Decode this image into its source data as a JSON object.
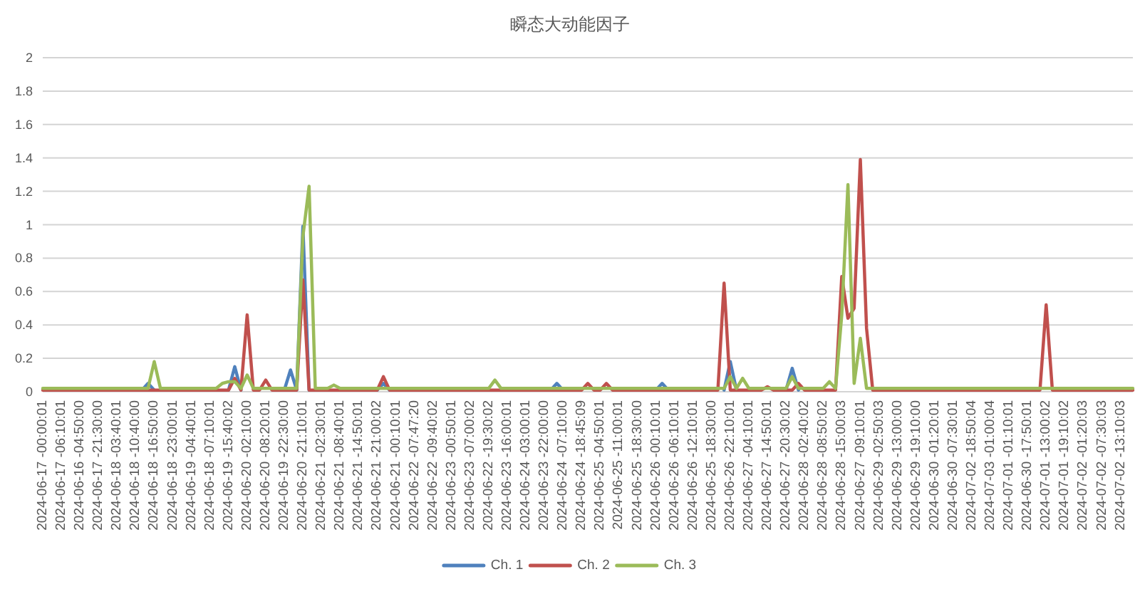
{
  "chart_data": {
    "type": "line",
    "title": "瞬态大动能因子",
    "categories": [
      "2024-06-17 -00:00:01",
      null,
      null,
      "2024-06-17 -06:10:01",
      null,
      null,
      "2024-06-16 -04:50:00",
      null,
      null,
      "2024-06-17 -21:30:00",
      null,
      null,
      "2024-06-18 -03:40:01",
      null,
      null,
      "2024-06-18 -10:40:00",
      null,
      null,
      "2024-06-18 -16:50:00",
      null,
      null,
      "2024-06-18 -23:00:01",
      null,
      null,
      "2024-06-19 -04:40:01",
      null,
      null,
      "2024-06-18 -07:10:01",
      null,
      null,
      "2024-06-19 -15:40:02",
      null,
      null,
      "2024-06-20 -02:10:00",
      null,
      null,
      "2024-06-20 -08:20:01",
      null,
      null,
      "2024-06-19 -22:30:00",
      null,
      null,
      "2024-06-20 -21:10:01",
      null,
      null,
      "2024-06-21 -02:30:01",
      null,
      null,
      "2024-06-21 -08:40:01",
      null,
      null,
      "2024-06-21 -14:50:01",
      null,
      null,
      "2024-06-21 -21:00:02",
      null,
      null,
      "2024-06-21 -00:10:01",
      null,
      null,
      "2024-06-22 -07:47:20",
      null,
      null,
      "2024-06-22 -09:40:02",
      null,
      null,
      "2024-06-23 -00:50:01",
      null,
      null,
      "2024-06-23 -07:00:02",
      null,
      null,
      "2024-06-22 -19:30:02",
      null,
      null,
      "2024-06-23 -16:00:01",
      null,
      null,
      "2024-06-24 -03:00:01",
      null,
      null,
      "2024-06-23 -22:00:00",
      null,
      null,
      "2024-06-24 -07:10:00",
      null,
      null,
      "2024-06-24 -18:45:09",
      null,
      null,
      "2024-06-25 -04:50:01",
      null,
      null,
      "2024-06-25 -11:00:01",
      null,
      null,
      "2024-06-25 -18:30:00",
      null,
      null,
      "2024-06-26 -00:10:01",
      null,
      null,
      "2024-06-26 -06:10:01",
      null,
      null,
      "2024-06-26 -12:10:01",
      null,
      null,
      "2024-06-25 -18:30:00",
      null,
      null,
      "2024-06-26 -22:10:01",
      null,
      null,
      "2024-06-27 -04:10:01",
      null,
      null,
      "2024-06-27 -14:50:01",
      null,
      null,
      "2024-06-27 -20:30:02",
      null,
      null,
      "2024-06-28 -02:40:02",
      null,
      null,
      "2024-06-28 -08:50:02",
      null,
      null,
      "2024-06-28 -15:00:03",
      null,
      null,
      "2024-06-27 -09:10:01",
      null,
      null,
      "2024-06-29 -02:50:03",
      null,
      null,
      "2024-06-29 -13:00:00",
      null,
      null,
      "2024-06-29 -19:10:00",
      null,
      null,
      "2024-06-30 -01:20:01",
      null,
      null,
      "2024-06-30 -07:30:01",
      null,
      null,
      "2024-07-02 -18:50:04",
      null,
      null,
      "2024-07-03 -01:00:04",
      null,
      null,
      "2024-07-01 -01:10:01",
      null,
      null,
      "2024-06-30 -17:50:01",
      null,
      null,
      "2024-07-01 -13:00:02",
      null,
      null,
      "2024-07-01 -19:10:02",
      null,
      null,
      "2024-07-02 -01:20:03",
      null,
      null,
      "2024-07-02 -07:30:03",
      null,
      null,
      "2024-07-02 -13:10:03",
      null,
      null
    ],
    "series": [
      {
        "name": "Ch. 1",
        "color": "#4f81bd",
        "values": [
          null,
          null,
          null,
          null,
          null,
          null,
          null,
          null,
          null,
          null,
          null,
          null,
          null,
          null,
          null,
          null,
          0.01,
          0.05,
          0.01,
          null,
          null,
          null,
          null,
          null,
          null,
          null,
          null,
          null,
          null,
          null,
          0.01,
          0.15,
          0.01,
          null,
          null,
          null,
          null,
          null,
          null,
          0.01,
          0.13,
          0.01,
          0.99,
          0.01,
          null,
          null,
          null,
          null,
          null,
          null,
          null,
          null,
          null,
          null,
          0.01,
          0.05,
          0.01,
          null,
          null,
          null,
          null,
          null,
          null,
          null,
          null,
          null,
          null,
          null,
          null,
          null,
          null,
          null,
          null,
          null,
          null,
          null,
          null,
          null,
          null,
          null,
          null,
          null,
          0.01,
          0.05,
          0.01,
          null,
          null,
          null,
          null,
          null,
          null,
          null,
          null,
          null,
          null,
          null,
          null,
          null,
          null,
          0.01,
          0.05,
          0.01,
          null,
          null,
          null,
          null,
          null,
          null,
          null,
          null,
          0.01,
          0.18,
          0.01,
          null,
          null,
          null,
          null,
          null,
          null,
          null,
          0.01,
          0.14,
          0.01,
          null,
          null,
          null,
          null,
          null,
          null,
          null,
          null,
          null,
          null,
          null,
          null,
          null,
          null,
          null,
          null,
          null,
          null,
          null,
          null,
          null,
          null,
          null,
          null,
          null,
          null,
          null,
          null,
          null,
          null,
          null,
          null,
          null,
          null,
          null,
          null,
          null,
          null,
          null,
          null,
          null,
          null,
          null,
          null,
          null,
          null,
          null,
          null,
          null,
          null,
          null,
          null,
          null,
          null
        ]
      },
      {
        "name": "Ch. 2",
        "color": "#c0504d",
        "values": [
          0.01,
          0.01,
          0.01,
          0.01,
          0.01,
          0.01,
          0.01,
          0.01,
          0.01,
          0.01,
          0.01,
          0.01,
          0.01,
          0.01,
          0.01,
          0.01,
          0.01,
          0.01,
          0.01,
          0.01,
          0.01,
          0.01,
          0.01,
          0.01,
          0.01,
          0.01,
          0.01,
          0.01,
          0.01,
          0.01,
          0.01,
          0.08,
          0.01,
          0.46,
          0.01,
          0.01,
          0.07,
          0.01,
          0.01,
          0.01,
          0.01,
          0.01,
          0.67,
          0.01,
          0.01,
          0.01,
          0.01,
          0.01,
          0.01,
          0.01,
          0.01,
          0.01,
          0.01,
          0.01,
          0.01,
          0.09,
          0.01,
          0.01,
          0.01,
          0.01,
          0.01,
          0.01,
          0.01,
          0.01,
          0.01,
          0.01,
          0.01,
          0.01,
          0.01,
          0.01,
          0.01,
          0.01,
          0.01,
          0.01,
          0.01,
          0.01,
          0.01,
          0.01,
          0.01,
          0.01,
          0.01,
          0.01,
          0.01,
          0.01,
          0.01,
          0.01,
          0.01,
          0.01,
          0.05,
          0.01,
          0.01,
          0.05,
          0.01,
          0.01,
          0.01,
          0.01,
          0.01,
          0.01,
          0.01,
          0.01,
          0.01,
          0.01,
          0.01,
          0.01,
          0.01,
          0.01,
          0.01,
          0.01,
          0.01,
          0.01,
          0.65,
          0.01,
          0.01,
          0.01,
          0.01,
          0.01,
          0.01,
          0.03,
          0.01,
          0.01,
          0.01,
          0.01,
          0.05,
          0.01,
          0.01,
          0.01,
          0.01,
          0.01,
          0.01,
          0.69,
          0.44,
          0.5,
          1.39,
          0.38,
          0.01,
          0.01,
          0.01,
          0.01,
          0.01,
          0.01,
          0.01,
          0.01,
          0.01,
          0.01,
          0.01,
          0.01,
          0.01,
          0.01,
          0.01,
          0.01,
          0.01,
          0.01,
          0.01,
          0.01,
          0.01,
          0.01,
          0.01,
          0.01,
          0.01,
          0.01,
          0.01,
          0.01,
          0.52,
          0.01,
          0.01,
          0.01,
          0.01,
          0.01,
          0.01,
          0.01,
          0.01,
          0.01,
          0.01,
          0.01,
          0.01,
          0.01,
          0.01
        ]
      },
      {
        "name": "Ch. 3",
        "color": "#9bbb59",
        "values": [
          0.02,
          0.02,
          0.02,
          0.02,
          0.02,
          0.02,
          0.02,
          0.02,
          0.02,
          0.02,
          0.02,
          0.02,
          0.02,
          0.02,
          0.02,
          0.02,
          0.02,
          0.02,
          0.18,
          0.02,
          0.02,
          0.02,
          0.02,
          0.02,
          0.02,
          0.02,
          0.02,
          0.02,
          0.02,
          0.05,
          0.06,
          0.06,
          0.02,
          0.1,
          0.02,
          0.02,
          0.02,
          0.02,
          0.02,
          0.02,
          0.02,
          0.02,
          0.93,
          1.23,
          0.02,
          0.02,
          0.02,
          0.04,
          0.02,
          0.02,
          0.02,
          0.02,
          0.02,
          0.02,
          0.02,
          0.02,
          0.02,
          0.02,
          0.02,
          0.02,
          0.02,
          0.02,
          0.02,
          0.02,
          0.02,
          0.02,
          0.02,
          0.02,
          0.02,
          0.02,
          0.02,
          0.02,
          0.02,
          0.07,
          0.02,
          0.02,
          0.02,
          0.02,
          0.02,
          0.02,
          0.02,
          0.02,
          0.02,
          0.02,
          0.02,
          0.02,
          0.02,
          0.02,
          0.02,
          0.02,
          0.02,
          0.02,
          0.02,
          0.02,
          0.02,
          0.02,
          0.02,
          0.02,
          0.02,
          0.02,
          0.02,
          0.02,
          0.02,
          0.02,
          0.02,
          0.02,
          0.02,
          0.02,
          0.02,
          0.02,
          0.02,
          0.09,
          0.02,
          0.08,
          0.02,
          0.02,
          0.02,
          0.02,
          0.02,
          0.02,
          0.02,
          0.09,
          0.02,
          0.02,
          0.02,
          0.02,
          0.02,
          0.06,
          0.02,
          0.46,
          1.24,
          0.05,
          0.32,
          0.02,
          0.02,
          0.02,
          0.02,
          0.02,
          0.02,
          0.02,
          0.02,
          0.02,
          0.02,
          0.02,
          0.02,
          0.02,
          0.02,
          0.02,
          0.02,
          0.02,
          0.02,
          0.02,
          0.02,
          0.02,
          0.02,
          0.02,
          0.02,
          0.02,
          0.02,
          0.02,
          0.02,
          0.02,
          0.02,
          0.02,
          0.02,
          0.02,
          0.02,
          0.02,
          0.02,
          0.02,
          0.02,
          0.02,
          0.02,
          0.02,
          0.02,
          0.02,
          0.02
        ]
      }
    ],
    "ylim": [
      0,
      2
    ],
    "yticks": [
      0,
      0.2,
      0.4,
      0.6,
      0.8,
      1,
      1.2,
      1.4,
      1.6,
      1.8,
      2
    ],
    "grid": "y",
    "legend": "bottom"
  }
}
